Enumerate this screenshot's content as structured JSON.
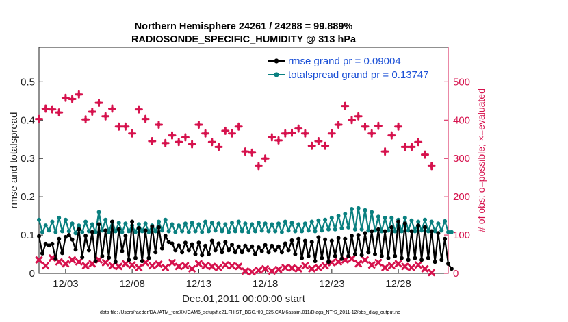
{
  "chart_data": {
    "type": "line",
    "title": [
      "Northern Hemisphere 24261 / 24288 = 99.889%",
      "RADIOSONDE_SPECIFIC_HUMIDITY @ 313 hPa"
    ],
    "xlabel": "Dec.01,2011 00:00:00 start",
    "ylabel": "rmse and totalspread",
    "ylabel_right": "# of obs: o=possible; ×=evaluated",
    "x_tick_labels": [
      "12/03",
      "12/08",
      "12/13",
      "12/18",
      "12/23",
      "12/28"
    ],
    "x_tick_days": [
      3,
      8,
      13,
      18,
      23,
      28
    ],
    "xlim": [
      1,
      31.75
    ],
    "ylim": [
      0,
      0.59
    ],
    "ylim_right": [
      0,
      590
    ],
    "y_ticks": [
      "0",
      "0.1",
      "0.2",
      "0.3",
      "0.4",
      "0.5"
    ],
    "y_ticks_right": [
      "0",
      "100",
      "200",
      "300",
      "400",
      "500"
    ],
    "legend": {
      "placement": "top-right",
      "entries": [
        "rmse grand pr = 0.09004",
        "totalspread grand pr = 0.13747"
      ]
    },
    "footnote": "data file: /Users/raeder/DAI/ATM_forcXX/CAM6_setup/f.e21.FHIST_BGC.f09_025.CAM6assim.011/Diags_NTrS_2011-12/obs_diag_output.nc",
    "grid": false,
    "series": [
      {
        "name": "rmse",
        "axis": "left",
        "x_start": 1,
        "x_step": 0.25,
        "values": [
          0.097,
          0.052,
          0.077,
          0.073,
          0.077,
          0.038,
          0.09,
          0.053,
          0.095,
          0.1,
          0.088,
          0.062,
          0.115,
          0.042,
          0.098,
          0.06,
          0.108,
          0.032,
          0.128,
          0.045,
          0.112,
          0.041,
          0.135,
          0.03,
          0.115,
          0.058,
          0.098,
          0.035,
          0.135,
          0.04,
          0.118,
          0.032,
          0.112,
          0.04,
          0.122,
          0.055,
          0.12,
          0.065,
          0.098,
          0.082,
          0.078,
          0.06,
          0.073,
          0.055,
          0.08,
          0.06,
          0.076,
          0.05,
          0.08,
          0.048,
          0.072,
          0.05,
          0.085,
          0.06,
          0.078,
          0.055,
          0.082,
          0.06,
          0.075,
          0.055,
          0.07,
          0.055,
          0.072,
          0.06,
          0.07,
          0.05,
          0.068,
          0.058,
          0.074,
          0.055,
          0.072,
          0.06,
          0.07,
          0.055,
          0.078,
          0.06,
          0.086,
          0.05,
          0.09,
          0.04,
          0.085,
          0.045,
          0.082,
          0.032,
          0.094,
          0.04,
          0.088,
          0.03,
          0.085,
          0.045,
          0.092,
          0.038,
          0.09,
          0.045,
          0.098,
          0.05,
          0.1,
          0.048,
          0.105,
          0.055,
          0.11,
          0.05,
          0.115,
          0.045,
          0.11,
          0.04,
          0.12,
          0.045,
          0.135,
          0.04,
          0.13,
          0.035,
          0.11,
          0.04,
          0.125,
          0.035,
          0.12,
          0.04,
          0.11,
          0.03,
          0.105,
          0.035,
          0.09,
          0.025,
          0.012
        ]
      },
      {
        "name": "totalspread",
        "axis": "left",
        "x_start": 1,
        "x_step": 0.25,
        "values": [
          0.14,
          0.108,
          0.125,
          0.112,
          0.135,
          0.108,
          0.145,
          0.11,
          0.14,
          0.11,
          0.13,
          0.105,
          0.125,
          0.108,
          0.135,
          0.11,
          0.128,
          0.108,
          0.16,
          0.112,
          0.14,
          0.108,
          0.135,
          0.11,
          0.132,
          0.108,
          0.13,
          0.11,
          0.125,
          0.108,
          0.128,
          0.11,
          0.13,
          0.108,
          0.125,
          0.11,
          0.135,
          0.112,
          0.14,
          0.11,
          0.128,
          0.108,
          0.125,
          0.11,
          0.13,
          0.108,
          0.132,
          0.11,
          0.128,
          0.108,
          0.135,
          0.11,
          0.132,
          0.112,
          0.13,
          0.11,
          0.128,
          0.108,
          0.132,
          0.11,
          0.135,
          0.11,
          0.13,
          0.108,
          0.128,
          0.11,
          0.132,
          0.112,
          0.13,
          0.11,
          0.128,
          0.11,
          0.13,
          0.108,
          0.135,
          0.112,
          0.132,
          0.11,
          0.128,
          0.11,
          0.13,
          0.112,
          0.135,
          0.11,
          0.138,
          0.112,
          0.14,
          0.115,
          0.145,
          0.115,
          0.15,
          0.118,
          0.155,
          0.12,
          0.168,
          0.115,
          0.17,
          0.115,
          0.165,
          0.112,
          0.16,
          0.112,
          0.148,
          0.11,
          0.145,
          0.112,
          0.145,
          0.11,
          0.14,
          0.11,
          0.145,
          0.112,
          0.138,
          0.11,
          0.135,
          0.112,
          0.14,
          0.11,
          0.135,
          0.11,
          0.13,
          0.112,
          0.136,
          0.108,
          0.108
        ]
      },
      {
        "name": "possible",
        "axis": "right",
        "x_start": 1,
        "x_step": 0.5,
        "values": [
          403,
          430,
          428,
          420,
          458,
          455,
          467,
          402,
          422,
          445,
          410,
          430,
          383,
          383,
          365,
          428,
          403,
          345,
          388,
          340,
          360,
          343,
          355,
          337,
          388,
          365,
          343,
          330,
          372,
          365,
          383,
          318,
          315,
          280,
          300,
          355,
          347,
          365,
          367,
          378,
          365,
          333,
          345,
          333,
          365,
          388,
          437,
          400,
          410,
          383,
          365,
          385,
          318,
          360,
          383,
          330,
          330,
          343,
          310,
          280
        ]
      },
      {
        "name": "evaluated",
        "axis": "right",
        "x_start": 1,
        "x_step": 0.5,
        "values": [
          35,
          20,
          40,
          30,
          25,
          35,
          30,
          20,
          25,
          35,
          28,
          20,
          18,
          25,
          22,
          15,
          28,
          20,
          24,
          15,
          28,
          18,
          20,
          12,
          25,
          20,
          18,
          15,
          22,
          20,
          18,
          6,
          4,
          8,
          12,
          6,
          10,
          15,
          14,
          12,
          20,
          12,
          15,
          20,
          28,
          30,
          35,
          38,
          25,
          35,
          22,
          28,
          15,
          20,
          25,
          18,
          15,
          22,
          12,
          2
        ]
      }
    ]
  }
}
